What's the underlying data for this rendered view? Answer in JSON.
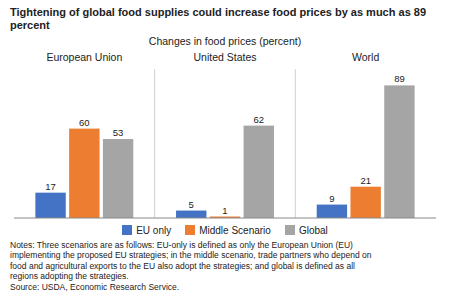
{
  "chart_data": {
    "type": "bar",
    "title": "Tightening of global food supplies could increase food prices by as much as 89 percent",
    "subtitle": "Changes in food prices (percent)",
    "categories": [
      "European Union",
      "United States",
      "World"
    ],
    "series": [
      {
        "name": "EU only",
        "color": "#4472c4",
        "values": [
          17,
          5,
          9
        ]
      },
      {
        "name": "Middle Scenario",
        "color": "#ed7d31",
        "values": [
          60,
          1,
          21
        ]
      },
      {
        "name": "Global",
        "color": "#a5a5a5",
        "values": [
          53,
          62,
          89
        ]
      }
    ],
    "ylim": [
      0,
      100
    ],
    "yticks": [],
    "grid": false,
    "legend": "bottom",
    "data_labels": true,
    "tick_labels": "x",
    "annotations": [
      "Notes: Three scenarios are as follows: EU-only is defined as only the European Union (EU)",
      "implementing the proposed EU strategies; in the middle scenario, trade partners who depend on",
      "food and agricultural exports to the EU also adopt the strategies; and global is defined as all",
      "regions adopting the strategies.",
      "Source: USDA, Economic Research Service."
    ]
  }
}
